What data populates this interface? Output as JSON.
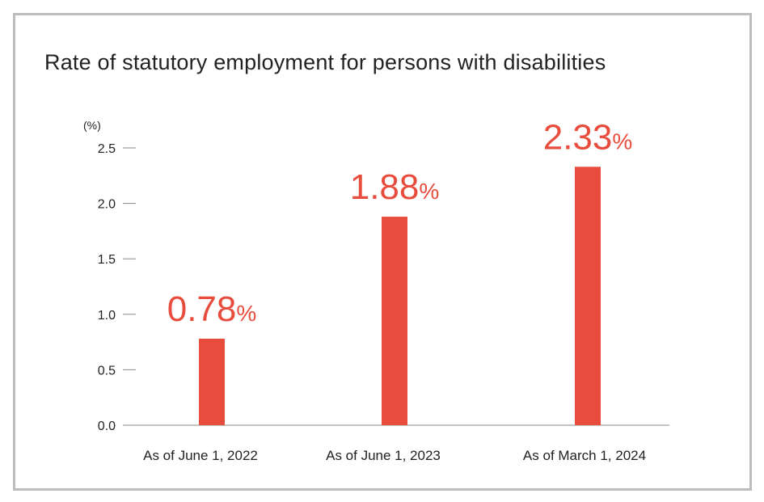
{
  "chart_data": {
    "type": "bar",
    "title": "Rate of statutory employment for persons with disabilities",
    "unit_label": "(%)",
    "categories": [
      "As of June 1, 2022",
      "As of June 1, 2023",
      "As of March 1, 2024"
    ],
    "values": [
      0.78,
      1.88,
      2.33
    ],
    "value_labels": [
      "0.78",
      "1.88",
      "2.33"
    ],
    "value_suffix": "%",
    "yticks": [
      "0.0",
      "0.5",
      "1.0",
      "1.5",
      "2.0",
      "2.5"
    ],
    "ylim": [
      0,
      2.5
    ],
    "grid": false,
    "legend": "none",
    "colors": {
      "bar": "#e84c3d",
      "axis": "#888888",
      "frame": "#bdbdbd",
      "text": "#222222"
    }
  }
}
